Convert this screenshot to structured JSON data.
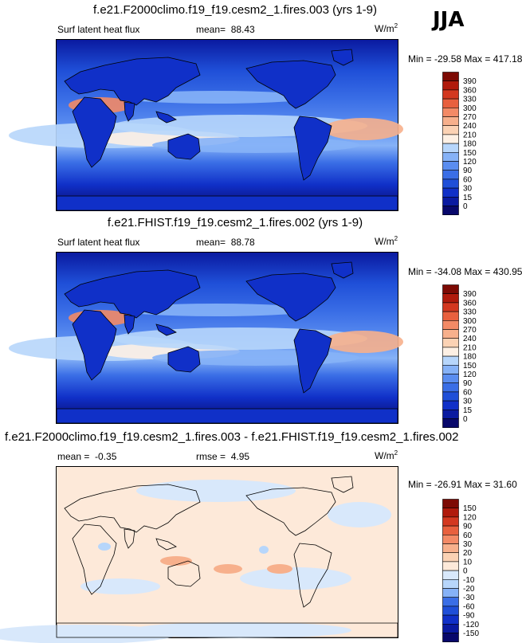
{
  "season": "JJA",
  "panels": [
    {
      "title": "f.e21.F2000climo.f19_f19.cesm2_1.fires.003 (yrs 1-9)",
      "variable": "Surf latent heat flux",
      "mean_label": "mean=",
      "mean_value": "88.43",
      "units": "W/m",
      "units_sup": "2",
      "minmax": "Min = -29.58 Max = 417.18"
    },
    {
      "title": "f.e21.FHIST.f19_f19.cesm2_1.fires.002 (yrs 1-9)",
      "variable": "Surf latent heat flux",
      "mean_label": "mean=",
      "mean_value": "88.78",
      "units": "W/m",
      "units_sup": "2",
      "minmax": "Min = -34.08 Max = 430.95"
    },
    {
      "title": "f.e21.F2000climo.f19_f19.cesm2_1.fires.003 - f.e21.FHIST.f19_f19.cesm2_1.fires.002",
      "mean_label": "mean =",
      "mean_value": "-0.35",
      "rmse_label": "rmse =",
      "rmse_value": "4.95",
      "units": "W/m",
      "units_sup": "2",
      "minmax": "Min = -26.91 Max = 31.60"
    }
  ],
  "chart_data": [
    {
      "type": "heatmap",
      "title": "f.e21.F2000climo.f19_f19.cesm2_1.fires.003 (yrs 1-9)",
      "variable": "Surf latent heat flux",
      "units": "W/m2",
      "mean": 88.43,
      "min": -29.58,
      "max": 417.18,
      "colorbar_levels": [
        0,
        15,
        30,
        60,
        90,
        120,
        150,
        180,
        210,
        240,
        270,
        300,
        330,
        360,
        390
      ],
      "colorbar_colors": [
        "#08086b",
        "#0a1aa0",
        "#1030c8",
        "#1f4fd8",
        "#3a6ee6",
        "#5a8df0",
        "#86b2f7",
        "#b7d6fb",
        "#fdf0e4",
        "#fbd2b4",
        "#f7b08c",
        "#f38a66",
        "#e8603e",
        "#d33820",
        "#b01a0c",
        "#7d0a04"
      ]
    },
    {
      "type": "heatmap",
      "title": "f.e21.FHIST.f19_f19.cesm2_1.fires.002 (yrs 1-9)",
      "variable": "Surf latent heat flux",
      "units": "W/m2",
      "mean": 88.78,
      "min": -34.08,
      "max": 430.95,
      "colorbar_levels": [
        0,
        15,
        30,
        60,
        90,
        120,
        150,
        180,
        210,
        240,
        270,
        300,
        330,
        360,
        390
      ],
      "colorbar_colors": [
        "#08086b",
        "#0a1aa0",
        "#1030c8",
        "#1f4fd8",
        "#3a6ee6",
        "#5a8df0",
        "#86b2f7",
        "#b7d6fb",
        "#fdf0e4",
        "#fbd2b4",
        "#f7b08c",
        "#f38a66",
        "#e8603e",
        "#d33820",
        "#b01a0c",
        "#7d0a04"
      ]
    },
    {
      "type": "heatmap",
      "title": "f.e21.F2000climo.f19_f19.cesm2_1.fires.003 - f.e21.FHIST.f19_f19.cesm2_1.fires.002",
      "units": "W/m2",
      "mean": -0.35,
      "rmse": 4.95,
      "min": -26.91,
      "max": 31.6,
      "colorbar_levels": [
        -150,
        -120,
        -90,
        -60,
        -30,
        -20,
        -10,
        0,
        10,
        20,
        30,
        60,
        90,
        120,
        150
      ],
      "colorbar_colors": [
        "#08086b",
        "#0a1aa0",
        "#1030c8",
        "#1f4fd8",
        "#3a6ee6",
        "#86b2f7",
        "#b7d6fb",
        "#d8e8fb",
        "#fde9d9",
        "#fbd2b4",
        "#f7b08c",
        "#f38a66",
        "#e8603e",
        "#d33820",
        "#b01a0c",
        "#7d0a04"
      ]
    }
  ]
}
